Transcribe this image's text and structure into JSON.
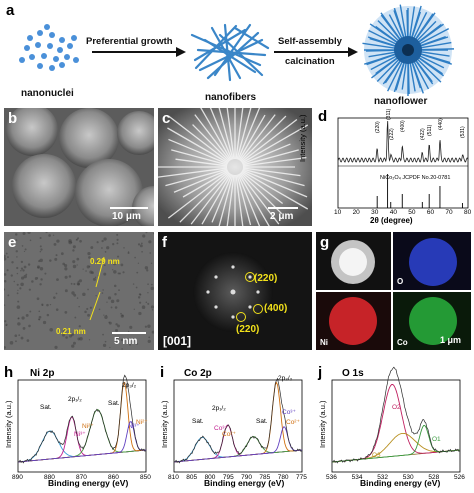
{
  "panel_labels": {
    "a": "a",
    "b": "b",
    "c": "c",
    "d": "d",
    "e": "e",
    "f": "f",
    "g": "g",
    "h": "h",
    "i": "i",
    "j": "j"
  },
  "scheme": {
    "step1": "Preferential growth",
    "step2a": "Self-assembly",
    "step2b": "calcination",
    "stage1": "nanonuclei",
    "stage2": "nanofibers",
    "stage3": "nanoflower"
  },
  "scalebars": {
    "b": "10 μm",
    "c": "2 μm",
    "e": "5 nm",
    "g": "1 μm"
  },
  "hrtem": {
    "d1": "0.29 nm",
    "d2": "0.21 nm"
  },
  "fft": {
    "zone": "[001]",
    "spots": [
      "(220)",
      "(400)",
      "(220)"
    ]
  },
  "eds": {
    "o": "O",
    "ni": "Ni",
    "co": "Co"
  },
  "xrd": {
    "ylabel": "Intensity (a.u.)",
    "xlabel": "2θ (degree)",
    "ref": "NiCo₂O₄ JCPDF No.20-0781",
    "peaks": [
      "(220)",
      "(311)",
      "(222)",
      "(400)",
      "(422)",
      "(511)",
      "(440)",
      "(531)"
    ],
    "xticks": [
      "10",
      "20",
      "30",
      "40",
      "50",
      "60",
      "70",
      "80"
    ]
  },
  "xps": [
    {
      "title": "Ni 2p",
      "ylabel": "Intensity (a.u.)",
      "xlabel": "Binding energy (eV)",
      "xticks": [
        "890",
        "880",
        "870",
        "860",
        "850"
      ],
      "labels": [
        "Sat.",
        "2p₁/₂",
        "Sat.",
        "2p₃/₂",
        "Ni³⁺",
        "Ni²⁺",
        "Ni³⁺",
        "Ni²⁺"
      ]
    },
    {
      "title": "Co 2p",
      "ylabel": "Intensity (a.u.)",
      "xlabel": "Binding energy (eV)",
      "xticks": [
        "810",
        "805",
        "800",
        "795",
        "790",
        "785",
        "780",
        "775"
      ],
      "labels": [
        "Sat.",
        "2p₁/₂",
        "Sat.",
        "2p₃/₂",
        "Co³⁺",
        "Co²⁺",
        "Co³⁺",
        "Co²⁺"
      ]
    },
    {
      "title": "O 1s",
      "ylabel": "Intensity (a.u.)",
      "xlabel": "Binding energy (eV)",
      "xticks": [
        "536",
        "534",
        "532",
        "530",
        "528",
        "526"
      ],
      "labels": [
        "O2",
        "O3",
        "O1"
      ]
    }
  ],
  "colors": {
    "fiber": "#3a86c8",
    "nuclei": "#4a90d9",
    "yellow": "#f3e21b",
    "ni_map": "#d9262b",
    "co_map": "#27a83a",
    "o_map": "#2a3fc9"
  }
}
